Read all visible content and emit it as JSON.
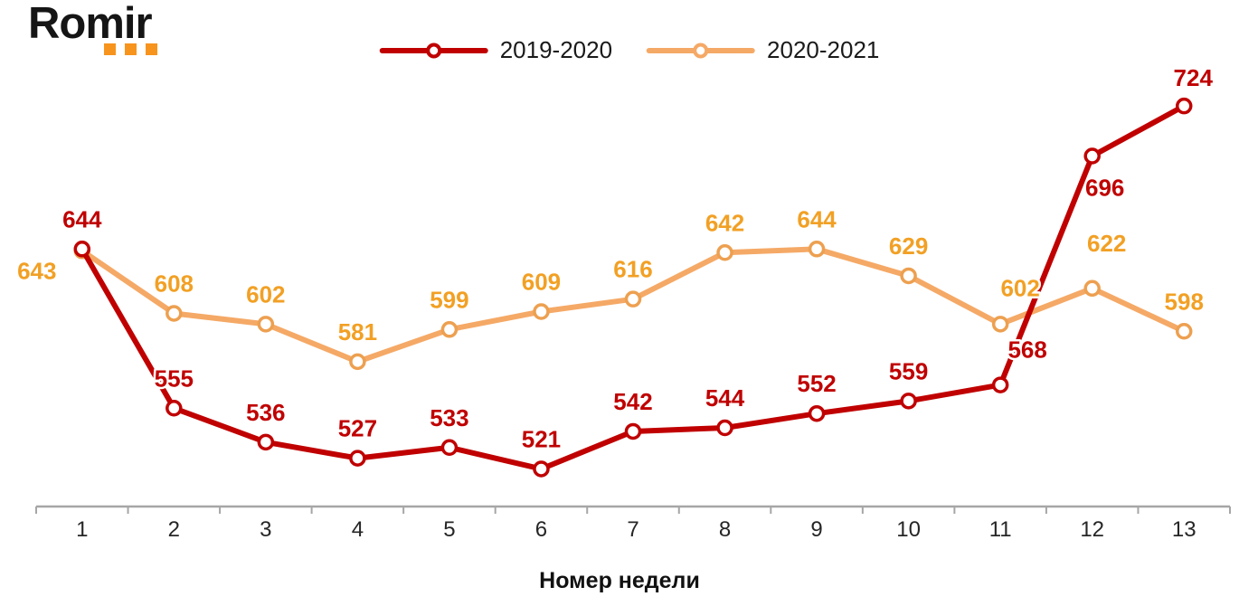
{
  "logo": {
    "text": "Romir",
    "dots_color": "#F7941E"
  },
  "legend": {
    "items": [
      {
        "label": "2019-2020",
        "color": "#C00000"
      },
      {
        "label": "2020-2021",
        "color": "#F5A966"
      }
    ]
  },
  "chart_data": {
    "type": "line",
    "x": [
      1,
      2,
      3,
      4,
      5,
      6,
      7,
      8,
      9,
      10,
      11,
      12,
      13
    ],
    "xlabel": "Номер недели",
    "ylabel": "",
    "ylim": [
      500,
      740
    ],
    "grid": false,
    "legend_position": "top-center",
    "axis_color": "#A6A6A6",
    "background": "#FFFFFF",
    "series": [
      {
        "name": "2019-2020",
        "line_color": "#C00000",
        "marker_color": "#C00000",
        "label_color": "#C00000",
        "values": [
          644,
          555,
          536,
          527,
          533,
          521,
          542,
          544,
          552,
          559,
          568,
          696,
          724
        ]
      },
      {
        "name": "2020-2021",
        "line_color": "#F5A966",
        "marker_color": "#EDA050",
        "label_color": "#F2A024",
        "values": [
          643,
          608,
          602,
          581,
          599,
          609,
          616,
          642,
          644,
          629,
          602,
          622,
          598
        ]
      }
    ],
    "label_overrides": {
      "0": {
        "10": [
          30,
          -30
        ],
        "11": [
          14,
          44
        ],
        "12": [
          10,
          -22
        ]
      },
      "1": {
        "0": [
          -50,
          31
        ],
        "10": [
          22,
          -31
        ],
        "11": [
          16,
          -41
        ]
      }
    }
  }
}
